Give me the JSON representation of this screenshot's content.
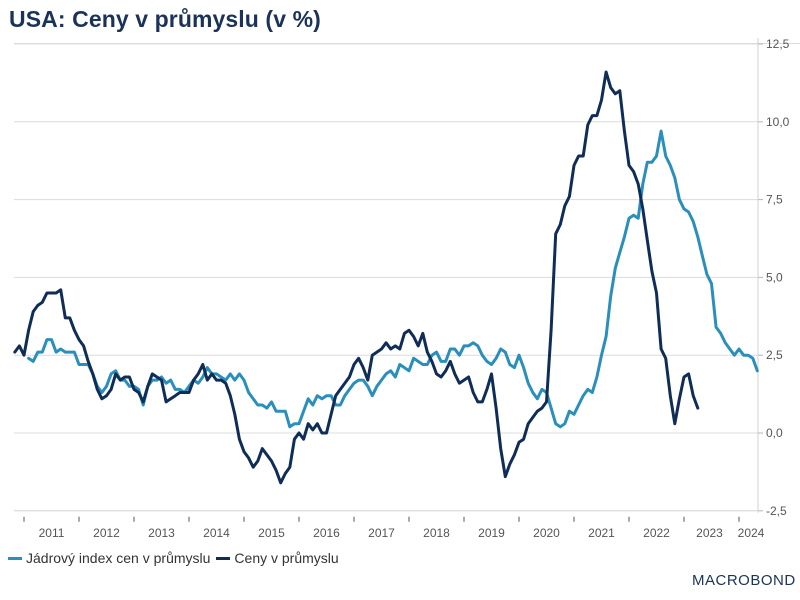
{
  "chart_data": {
    "type": "line",
    "title": "USA: Ceny v průmyslu (v %)",
    "xlabel": "",
    "ylabel": "",
    "y_axis_position": "right",
    "ylim": [
      -2.5,
      12.5
    ],
    "y_ticks": [
      "12,5",
      "10,0",
      "7,5",
      "5,0",
      "2,5",
      "0,0",
      "-2,5"
    ],
    "y_tick_values": [
      12.5,
      10.0,
      7.5,
      5.0,
      2.5,
      0.0,
      -2.5
    ],
    "x_tick_labels": [
      "2011",
      "2012",
      "2013",
      "2014",
      "2015",
      "2016",
      "2017",
      "2018",
      "2019",
      "2020",
      "2021",
      "2022",
      "2023",
      "2024"
    ],
    "grid": true,
    "legend_position": "bottom-left",
    "series": [
      {
        "name": "Jádrový index cen v průmyslu",
        "color": "#2a8fba",
        "start": "2011-02",
        "frequency": "monthly",
        "values": [
          2.4,
          2.3,
          2.6,
          2.6,
          3.0,
          3.0,
          2.6,
          2.7,
          2.6,
          2.6,
          2.6,
          2.2,
          2.2,
          2.2,
          1.9,
          1.5,
          1.3,
          1.5,
          1.9,
          2.0,
          1.7,
          1.7,
          1.5,
          1.5,
          1.4,
          0.9,
          1.5,
          1.7,
          1.7,
          1.8,
          1.6,
          1.7,
          1.4,
          1.4,
          1.3,
          1.5,
          1.7,
          1.6,
          1.8,
          2.1,
          1.9,
          1.9,
          1.8,
          1.7,
          1.9,
          1.7,
          1.9,
          1.7,
          1.3,
          1.1,
          0.9,
          0.9,
          0.8,
          1.0,
          0.7,
          0.7,
          0.7,
          0.2,
          0.3,
          0.3,
          0.7,
          1.1,
          0.9,
          1.2,
          1.1,
          1.2,
          1.2,
          0.9,
          0.9,
          1.2,
          1.4,
          1.6,
          1.7,
          1.7,
          1.5,
          1.2,
          1.5,
          1.7,
          1.9,
          2.0,
          1.8,
          2.2,
          2.1,
          2.0,
          2.4,
          2.3,
          2.2,
          2.2,
          2.5,
          2.6,
          2.3,
          2.3,
          2.7,
          2.7,
          2.5,
          2.8,
          2.8,
          2.9,
          2.8,
          2.5,
          2.3,
          2.2,
          2.4,
          2.7,
          2.6,
          2.2,
          2.1,
          2.5,
          2.1,
          1.6,
          1.3,
          1.1,
          1.4,
          1.3,
          0.8,
          0.3,
          0.2,
          0.3,
          0.7,
          0.6,
          0.9,
          1.2,
          1.4,
          1.3,
          1.8,
          2.5,
          3.1,
          4.4,
          5.3,
          5.8,
          6.3,
          6.9,
          7.0,
          6.9,
          8.0,
          8.7,
          8.7,
          8.9,
          9.7,
          8.9,
          8.6,
          8.2,
          7.5,
          7.2,
          7.1,
          6.8,
          6.3,
          5.7,
          5.1,
          4.8,
          3.4,
          3.2,
          2.9,
          2.7,
          2.5,
          2.7,
          2.5,
          2.5,
          2.4,
          2.0
        ]
      },
      {
        "name": "Ceny v průmyslu",
        "color": "#0f2d57",
        "start": "2010-11",
        "frequency": "monthly",
        "values": [
          2.6,
          2.8,
          2.5,
          3.3,
          3.9,
          4.1,
          4.2,
          4.5,
          4.5,
          4.5,
          4.6,
          3.7,
          3.7,
          3.3,
          3.0,
          2.8,
          2.3,
          1.9,
          1.4,
          1.1,
          1.2,
          1.4,
          1.9,
          1.7,
          1.8,
          1.8,
          1.4,
          1.3,
          1.0,
          1.5,
          1.9,
          1.8,
          1.7,
          1.0,
          1.1,
          1.2,
          1.3,
          1.3,
          1.3,
          1.7,
          1.9,
          2.2,
          1.7,
          1.9,
          1.7,
          1.7,
          1.6,
          1.2,
          0.6,
          -0.2,
          -0.6,
          -0.8,
          -1.1,
          -0.9,
          -0.5,
          -0.7,
          -0.9,
          -1.2,
          -1.6,
          -1.3,
          -1.1,
          -0.2,
          0.0,
          -0.2,
          0.3,
          0.1,
          0.3,
          0.0,
          0.0,
          0.6,
          1.2,
          1.4,
          1.6,
          1.8,
          2.2,
          2.4,
          2.1,
          1.7,
          2.5,
          2.6,
          2.7,
          2.9,
          2.7,
          2.8,
          2.7,
          3.2,
          3.3,
          3.1,
          2.8,
          3.2,
          2.6,
          2.3,
          1.9,
          1.8,
          2.0,
          2.3,
          1.9,
          1.6,
          1.7,
          1.8,
          1.3,
          1.0,
          1.0,
          1.4,
          1.9,
          0.8,
          -0.5,
          -1.4,
          -1.0,
          -0.7,
          -0.3,
          -0.2,
          0.3,
          0.5,
          0.7,
          0.8,
          1.0,
          3.3,
          6.4,
          6.7,
          7.3,
          7.6,
          8.6,
          8.9,
          8.9,
          9.9,
          10.2,
          10.2,
          10.7,
          11.6,
          11.1,
          10.9,
          11.0,
          9.7,
          8.6,
          8.4,
          8.0,
          7.2,
          6.2,
          5.2,
          4.5,
          2.7,
          2.4,
          1.2,
          0.3,
          1.1,
          1.8,
          1.9,
          1.2,
          0.8
        ]
      }
    ]
  },
  "legend": {
    "items": [
      {
        "label": "Jádrový index cen v průmyslu",
        "color": "#2a8fba"
      },
      {
        "label": "Ceny v průmyslu",
        "color": "#0f2d57"
      }
    ]
  },
  "branding": {
    "logo": "MACROBOND"
  }
}
